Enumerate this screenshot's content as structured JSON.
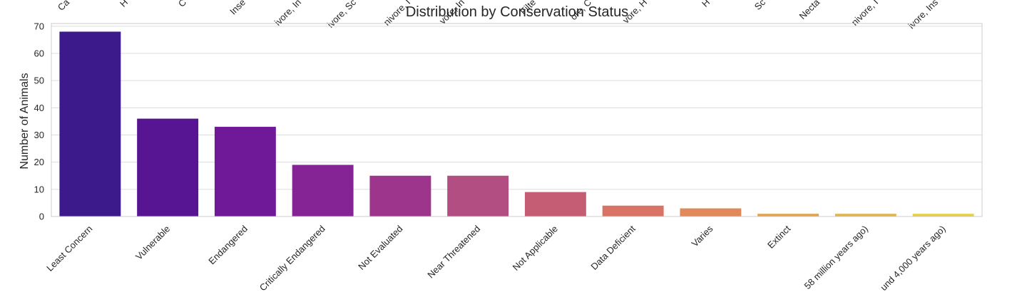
{
  "chart_data": {
    "type": "bar",
    "title": "Distribution by Conservation Status",
    "xlabel": "",
    "ylabel": "Number of Animals",
    "ylim": [
      0,
      71
    ],
    "yticks": [
      0,
      10,
      20,
      30,
      40,
      50,
      60,
      70
    ],
    "grid": true,
    "legend": "none",
    "categories": [
      "Least Concern",
      "Vulnerable",
      "Endangered",
      "Critically Endangered",
      "Not Evaluated",
      "Near Threatened",
      "Not Applicable",
      "Data Deficient",
      "Varies",
      "Extinct",
      "58 million years ago)",
      "und 4,000 years ago)"
    ],
    "values": [
      68,
      36,
      33,
      19,
      15,
      15,
      9,
      4,
      3,
      1,
      1,
      1
    ],
    "bar_colors": [
      "#3c1a8c",
      "#571594",
      "#6f1999",
      "#852495",
      "#9c358b",
      "#b24e81",
      "#c55e74",
      "#d97366",
      "#e08a5b",
      "#e0a24f",
      "#dfb44d",
      "#e6cf4b"
    ]
  },
  "overlap_labels": [
    "Ca",
    "H",
    "C",
    "Inse",
    "ivore, In",
    "ivore, Sc",
    "nivore, I",
    "vore, In",
    "Filte",
    "ore, C",
    "vore, H",
    "H",
    "Sc",
    "Necta",
    "nivore, I",
    "ivore, Ins"
  ]
}
